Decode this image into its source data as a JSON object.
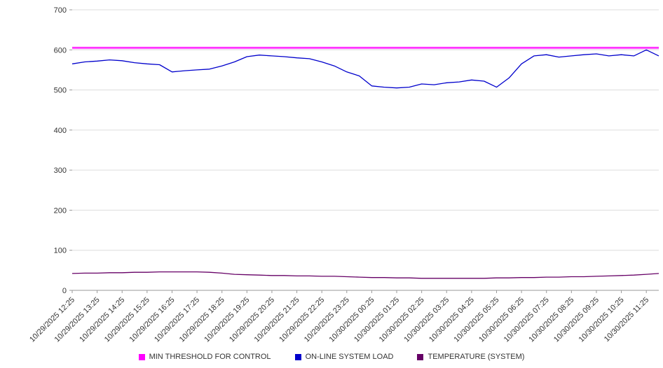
{
  "chart_data": {
    "type": "line",
    "title": "",
    "xlabel": "",
    "ylabel": "",
    "ylim": [
      0,
      700
    ],
    "yticks": [
      0,
      100,
      200,
      300,
      400,
      500,
      600,
      700
    ],
    "grid": true,
    "legend_position": "bottom",
    "points_per_label": 2,
    "x_labels": [
      "10/29/2025 12:25",
      "10/29/2025 13:25",
      "10/29/2025 14:25",
      "10/29/2025 15:25",
      "10/29/2025 16:25",
      "10/29/2025 17:25",
      "10/29/2025 18:25",
      "10/29/2025 19:25",
      "10/29/2025 20:25",
      "10/29/2025 21:25",
      "10/29/2025 22:25",
      "10/29/2025 23:25",
      "10/30/2025 00:25",
      "10/30/2025 01:25",
      "10/30/2025 02:25",
      "10/30/2025 03:25",
      "10/30/2025 04:25",
      "10/30/2025 05:25",
      "10/30/2025 06:25",
      "10/30/2025 07:25",
      "10/30/2025 08:25",
      "10/30/2025 09:25",
      "10/30/2025 10:25",
      "10/30/2025 11:25"
    ],
    "series": [
      {
        "name": "MIN THRESHOLD FOR CONTROL",
        "color": "#ff00ff",
        "halo": "#ffbbff",
        "width": 1.8,
        "constant": 605
      },
      {
        "name": "ON-LINE SYSTEM LOAD",
        "color": "#0000cc",
        "width": 1.3,
        "values": [
          565,
          570,
          572,
          575,
          573,
          568,
          565,
          563,
          545,
          548,
          550,
          552,
          560,
          570,
          583,
          587,
          585,
          583,
          580,
          578,
          570,
          560,
          545,
          535,
          510,
          507,
          505,
          507,
          515,
          513,
          518,
          520,
          525,
          522,
          507,
          530,
          565,
          585,
          588,
          582,
          585,
          588,
          590,
          585,
          588,
          585,
          600,
          585
        ]
      },
      {
        "name": "TEMPERATURE (SYSTEM)",
        "color": "#660066",
        "width": 1.3,
        "values": [
          42,
          43,
          43,
          44,
          44,
          45,
          45,
          46,
          46,
          46,
          46,
          45,
          43,
          40,
          39,
          38,
          37,
          37,
          36,
          36,
          35,
          35,
          34,
          33,
          32,
          32,
          31,
          31,
          30,
          30,
          30,
          30,
          30,
          30,
          31,
          31,
          32,
          32,
          33,
          33,
          34,
          34,
          35,
          36,
          37,
          38,
          40,
          42
        ]
      }
    ]
  },
  "legend": {
    "items": [
      {
        "label": "MIN THRESHOLD FOR CONTROL",
        "color": "#ff00ff"
      },
      {
        "label": "ON-LINE SYSTEM LOAD",
        "color": "#0000cc"
      },
      {
        "label": "TEMPERATURE (SYSTEM)",
        "color": "#660066"
      }
    ]
  }
}
